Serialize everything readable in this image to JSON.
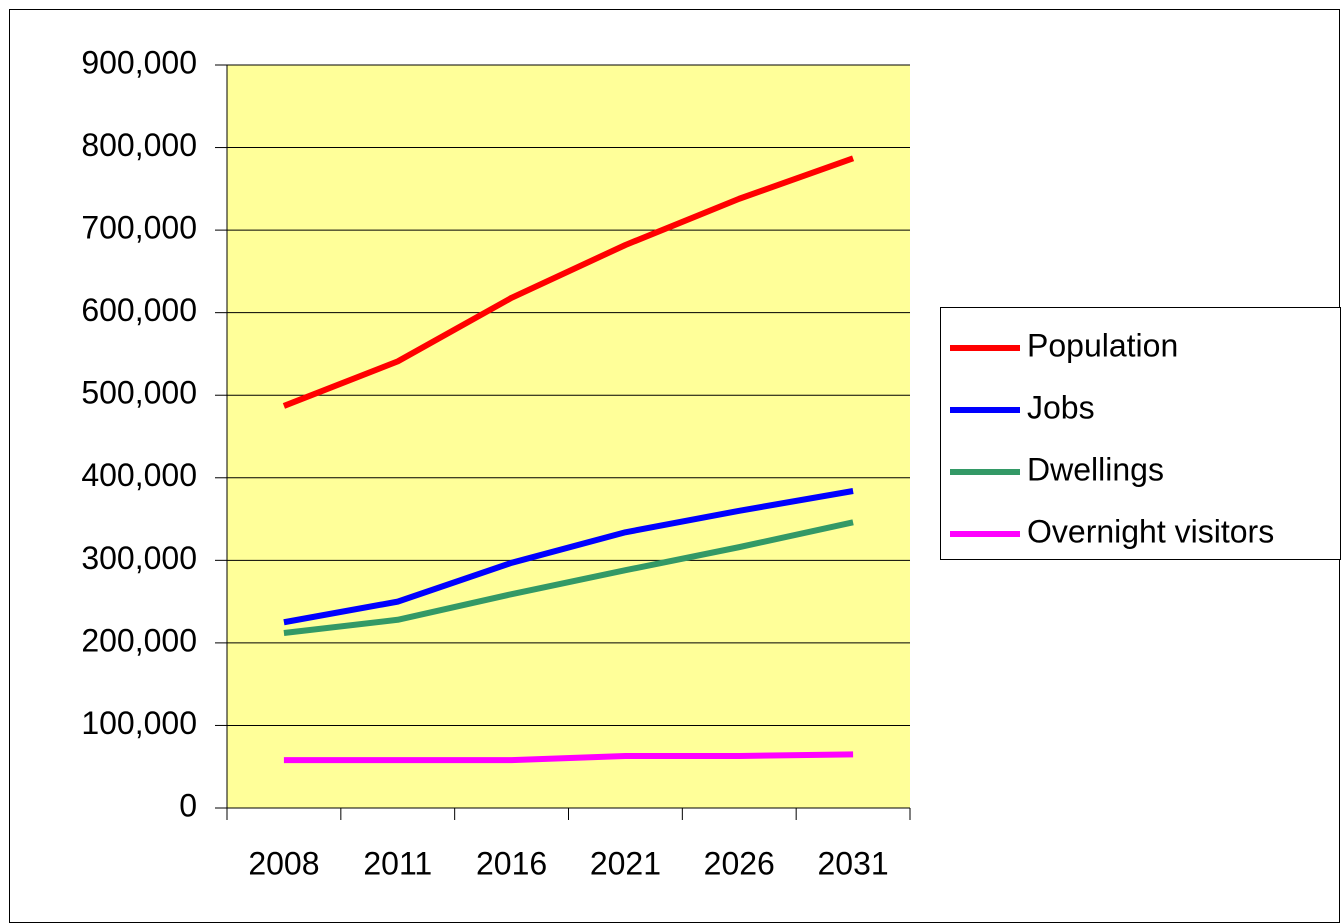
{
  "chart_data": {
    "type": "line",
    "categories": [
      "2008",
      "2011",
      "2016",
      "2021",
      "2026",
      "2031"
    ],
    "series": [
      {
        "name": "Population",
        "color": "#ff0000",
        "values": [
          487000,
          541000,
          618000,
          682000,
          738000,
          787000
        ]
      },
      {
        "name": "Jobs",
        "color": "#0000ff",
        "values": [
          225000,
          250000,
          297000,
          334000,
          360000,
          384000
        ]
      },
      {
        "name": "Dwellings",
        "color": "#339966",
        "values": [
          212000,
          228000,
          259000,
          288000,
          316000,
          346000
        ]
      },
      {
        "name": "Overnight visitors",
        "color": "#ff00ff",
        "values": [
          58000,
          58000,
          58000,
          63000,
          63000,
          65000
        ]
      }
    ],
    "ylim": [
      0,
      900000
    ],
    "yticks": [
      0,
      {
        "value": 100000,
        "label": "100,000"
      },
      {
        "value": 200000,
        "label": "200,000"
      },
      {
        "value": 300000,
        "label": "300,000"
      },
      {
        "value": 400000,
        "label": "400,000"
      },
      {
        "value": 500000,
        "label": "500,000"
      },
      {
        "value": 600000,
        "label": "600,000"
      },
      {
        "value": 700000,
        "label": "700,000"
      },
      {
        "value": 800000,
        "label": "800,000"
      },
      {
        "value": 900000,
        "label": "900,000"
      }
    ],
    "grid": true,
    "legend": "right",
    "plot_background": "#ffff99"
  }
}
